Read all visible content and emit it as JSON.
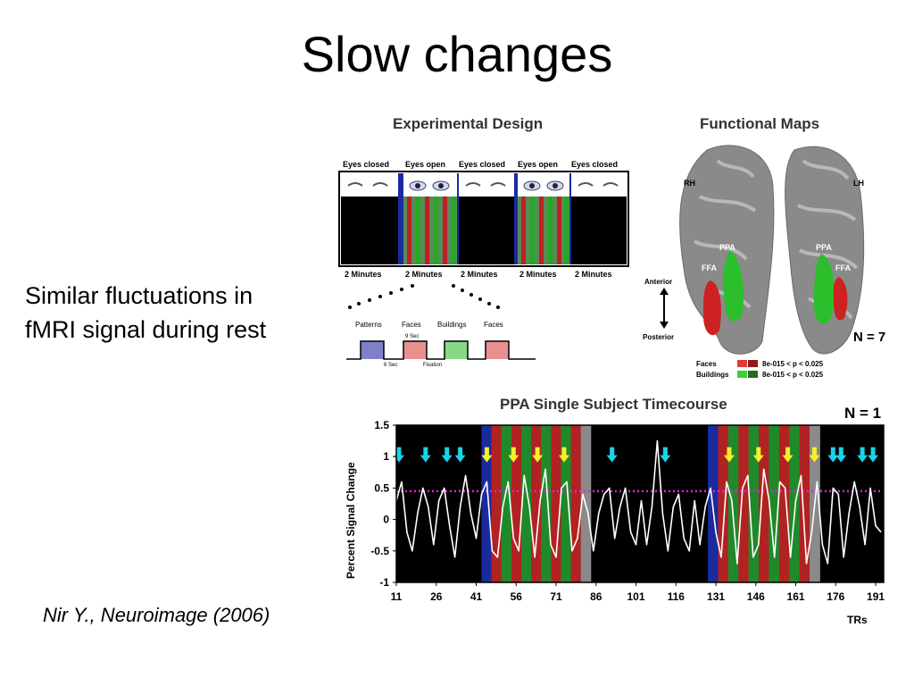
{
  "slide": {
    "title": "Slow changes",
    "bullet_lines": [
      "Similar fluctuations in",
      "fMRI signal during rest"
    ],
    "citation": "Nir Y., Neuroimage (2006)"
  },
  "design": {
    "heading": "Experimental Design",
    "conditions": [
      "Eyes closed",
      "Eyes open",
      "Eyes closed",
      "Eyes open",
      "Eyes closed"
    ],
    "durations": [
      "2 Minutes",
      "2 Minutes",
      "2 Minutes",
      "2 Minutes",
      "2 Minutes"
    ],
    "blocks": [
      "Patterns",
      "Faces",
      "Buildings",
      "Faces"
    ],
    "nine_sec": "9 Sec",
    "six_sec": "6 Sec",
    "fixation": "Fixation"
  },
  "maps": {
    "heading": "Functional Maps",
    "rh": "RH",
    "lh": "LH",
    "ppa_left": "PPA",
    "ffa_left": "FFA",
    "ppa_right": "PPA",
    "ffa_right": "FFA",
    "anterior": "Anterior",
    "posterior": "Posterior",
    "n": "N = 7",
    "legend": [
      {
        "label": "Faces",
        "stat": "8e-015 < p < 0.025",
        "colors": [
          "#e23a3a",
          "#8e1a1a"
        ]
      },
      {
        "label": "Buildings",
        "stat": "8e-015 < p < 0.025",
        "colors": [
          "#3bd13b",
          "#1f6e1f"
        ]
      }
    ]
  },
  "timecourse": {
    "heading": "PPA Single Subject Timecourse",
    "n": "N = 1",
    "ylabel": "Percent Signal Change",
    "xlabel": "TRs",
    "yticks": [
      "1.5",
      "1",
      "0.5",
      "0",
      "-0.5",
      "-1"
    ],
    "xticks": [
      "11",
      "26",
      "41",
      "56",
      "71",
      "86",
      "101",
      "116",
      "131",
      "146",
      "161",
      "176",
      "191"
    ],
    "threshold_color": "#e020e0"
  },
  "chart_data": {
    "type": "line",
    "title": "PPA Single Subject Timecourse",
    "xlabel": "TRs",
    "ylabel": "Percent Signal Change",
    "xlim": [
      11,
      194
    ],
    "ylim": [
      -1,
      1.5
    ],
    "threshold": 0.45,
    "grid": false,
    "x": [
      11,
      13,
      15,
      17,
      19,
      21,
      23,
      25,
      27,
      29,
      31,
      33,
      35,
      37,
      39,
      41,
      43,
      45,
      47,
      49,
      51,
      53,
      55,
      57,
      59,
      61,
      63,
      65,
      67,
      69,
      71,
      73,
      75,
      77,
      79,
      81,
      83,
      85,
      87,
      89,
      91,
      93,
      95,
      97,
      99,
      101,
      103,
      105,
      107,
      109,
      111,
      113,
      115,
      117,
      119,
      121,
      123,
      125,
      127,
      129,
      131,
      133,
      135,
      137,
      139,
      141,
      143,
      145,
      147,
      149,
      151,
      153,
      155,
      157,
      159,
      161,
      163,
      165,
      167,
      169,
      171,
      173,
      175,
      177,
      179,
      181,
      183,
      185,
      187,
      189,
      191,
      193
    ],
    "series": [
      {
        "values": [
          0.3,
          0.6,
          -0.2,
          -0.5,
          0.1,
          0.5,
          0.2,
          -0.4,
          0.3,
          0.5,
          -0.1,
          -0.6,
          0.2,
          0.7,
          0.1,
          -0.3,
          0.4,
          0.6,
          -0.5,
          -0.6,
          0.2,
          0.6,
          -0.3,
          -0.5,
          0.7,
          0.2,
          -0.6,
          0.3,
          0.8,
          -0.4,
          -0.6,
          0.5,
          0.6,
          -0.5,
          -0.3,
          0.4,
          0.1,
          -0.5,
          0.1,
          0.4,
          0.5,
          -0.3,
          0.2,
          0.5,
          -0.2,
          -0.4,
          0.3,
          -0.4,
          0.2,
          1.25,
          0.1,
          -0.5,
          0.2,
          0.4,
          -0.3,
          -0.5,
          0.3,
          -0.4,
          0.2,
          0.5,
          -0.2,
          -0.6,
          0.6,
          0.3,
          -0.7,
          0.5,
          0.7,
          -0.6,
          -0.4,
          0.8,
          0.3,
          -0.6,
          0.6,
          0.5,
          -0.6,
          0.3,
          0.7,
          -0.7,
          -0.2,
          0.6,
          -0.4,
          -0.7,
          0.5,
          0.4,
          -0.6,
          0.1,
          0.6,
          0.2,
          -0.4,
          0.5,
          -0.1,
          -0.2
        ]
      }
    ],
    "block_bands": [
      {
        "from": 43,
        "to": 84,
        "pattern": "stimulus"
      },
      {
        "from": 128,
        "to": 170,
        "pattern": "stimulus"
      }
    ],
    "arrows": [
      {
        "x": 12,
        "color": "cyan"
      },
      {
        "x": 22,
        "color": "cyan"
      },
      {
        "x": 30,
        "color": "cyan"
      },
      {
        "x": 35,
        "color": "cyan"
      },
      {
        "x": 45,
        "color": "yellow"
      },
      {
        "x": 55,
        "color": "yellow"
      },
      {
        "x": 64,
        "color": "yellow"
      },
      {
        "x": 74,
        "color": "yellow"
      },
      {
        "x": 92,
        "color": "cyan"
      },
      {
        "x": 112,
        "color": "cyan"
      },
      {
        "x": 136,
        "color": "yellow"
      },
      {
        "x": 147,
        "color": "yellow"
      },
      {
        "x": 158,
        "color": "yellow"
      },
      {
        "x": 168,
        "color": "yellow"
      },
      {
        "x": 175,
        "color": "cyan"
      },
      {
        "x": 178,
        "color": "cyan"
      },
      {
        "x": 186,
        "color": "cyan"
      },
      {
        "x": 190,
        "color": "cyan"
      }
    ]
  }
}
